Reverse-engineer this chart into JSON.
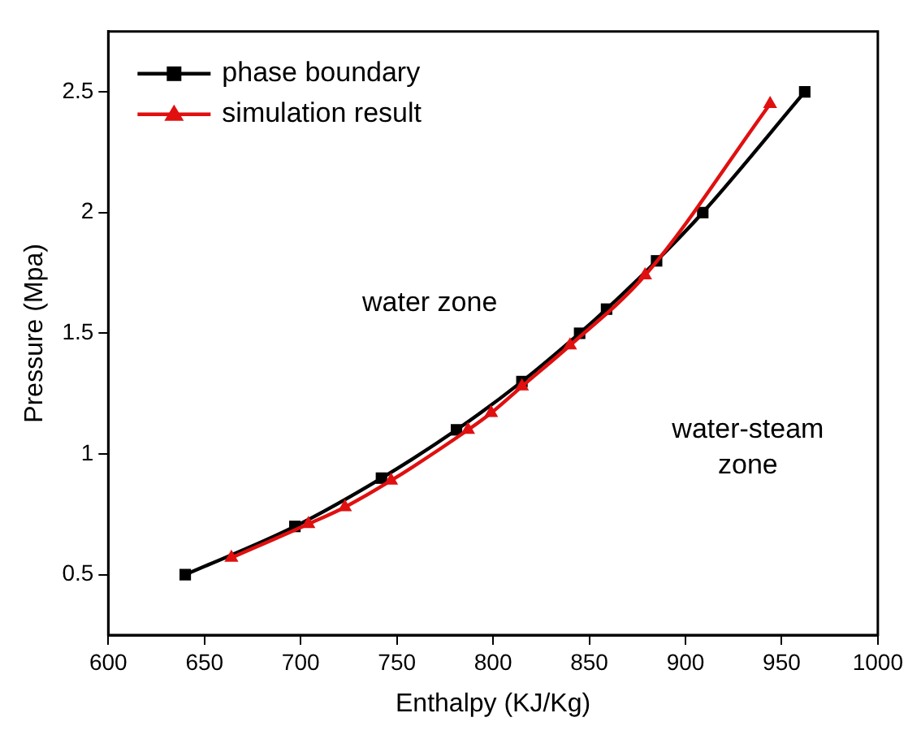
{
  "chart_data": {
    "type": "line",
    "xlabel": "Enthalpy (KJ/Kg)",
    "ylabel": "Pressure (Mpa)",
    "xlim": [
      600,
      1000
    ],
    "xticks": [
      600,
      650,
      700,
      750,
      800,
      850,
      900,
      950,
      1000
    ],
    "ylim": [
      0.25,
      2.75
    ],
    "yticks": [
      0.5,
      1.0,
      1.5,
      2.0,
      2.5
    ],
    "grid": false,
    "legend": "top left",
    "annotations": [
      "water zone",
      "water-steam zone"
    ],
    "series": [
      {
        "name": "phase boundary",
        "color": "#000000",
        "marker": "square",
        "x": [
          640,
          697,
          742,
          781,
          815,
          845,
          859,
          885,
          909,
          962
        ],
        "values": [
          0.5,
          0.7,
          0.9,
          1.1,
          1.3,
          1.5,
          1.6,
          1.8,
          2.0,
          2.5
        ]
      },
      {
        "name": "simulation result",
        "color": "#e01010",
        "marker": "triangle",
        "x": [
          664,
          704,
          723,
          747,
          787,
          799,
          815,
          840,
          879,
          944
        ],
        "values": [
          0.57,
          0.71,
          0.78,
          0.89,
          1.1,
          1.17,
          1.28,
          1.45,
          1.74,
          2.45
        ]
      }
    ]
  }
}
